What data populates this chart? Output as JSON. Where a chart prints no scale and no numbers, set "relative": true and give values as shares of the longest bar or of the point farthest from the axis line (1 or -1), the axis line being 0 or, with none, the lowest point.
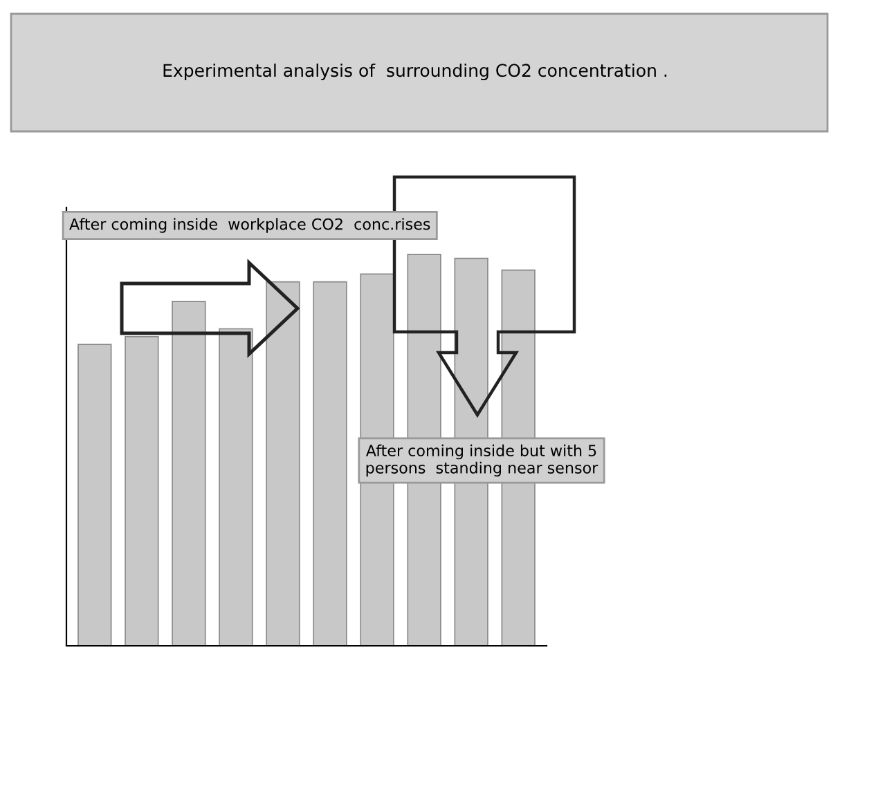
{
  "chart_data": {
    "type": "bar",
    "title": "Experimental analysis of  surrounding CO2 concentration .",
    "relative": true,
    "categories": [
      null,
      null,
      null,
      null,
      null,
      null,
      null,
      null,
      null,
      null
    ],
    "values": [
      0.77,
      0.79,
      0.88,
      0.81,
      0.93,
      0.93,
      0.95,
      1,
      0.99,
      0.96
    ],
    "color": "#c8c8c8",
    "annotations": [
      "After coming inside  workplace CO2  conc.rises",
      "After coming inside but with 5\npersons  standing near sensor"
    ]
  }
}
